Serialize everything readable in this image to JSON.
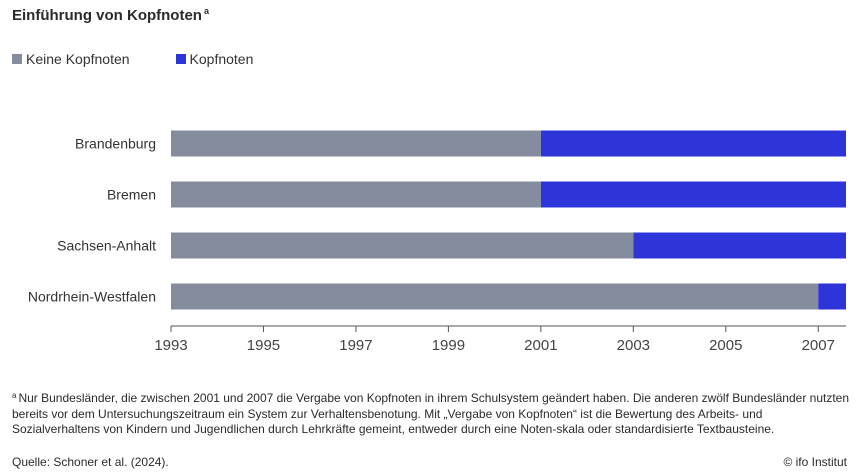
{
  "chart_data": {
    "type": "bar",
    "orientation": "horizontal",
    "stacked": true,
    "title": "Einführung von Kopfnoten",
    "title_marker": "a",
    "categories": [
      "Brandenburg",
      "Bremen",
      "Sachsen-Anhalt",
      "Nordrhein-Westfalen"
    ],
    "series": [
      {
        "name": "Keine Kopfnoten",
        "color": "#858c9e",
        "start": [
          1993,
          1993,
          1993,
          1993
        ],
        "end": [
          2001,
          2001,
          2003,
          2007
        ]
      },
      {
        "name": "Kopfnoten",
        "color": "#2e35d8",
        "start": [
          2001,
          2001,
          2003,
          2007
        ],
        "end": [
          2007.6,
          2007.6,
          2007.6,
          2007.6
        ]
      }
    ],
    "xlim": [
      1993,
      2007.6
    ],
    "xticks": [
      "1993",
      "1995",
      "1997",
      "1999",
      "2001",
      "2003",
      "2005",
      "2007"
    ],
    "xlabel": "",
    "ylabel": "",
    "legend": "top-left"
  },
  "footnote": {
    "marker": "a",
    "text": "Nur Bundesländer, die zwischen 2001 und 2007 die Vergabe von Kopfnoten in ihrem Schulsystem geändert haben. Die anderen zwölf Bundesländer nutzten bereits vor dem Untersuchungszeitraum ein System zur Verhaltensbenotung. Mit „Vergabe von Kopfnoten“ ist die Bewertung des Arbeits- und Sozialverhaltens von Kindern und Jugendlichen durch Lehrkräfte gemeint, entweder durch eine Noten-skala oder standardisierte Textbausteine."
  },
  "source": "Quelle: Schoner et al. (2024).",
  "credit": "© ifo Institut"
}
